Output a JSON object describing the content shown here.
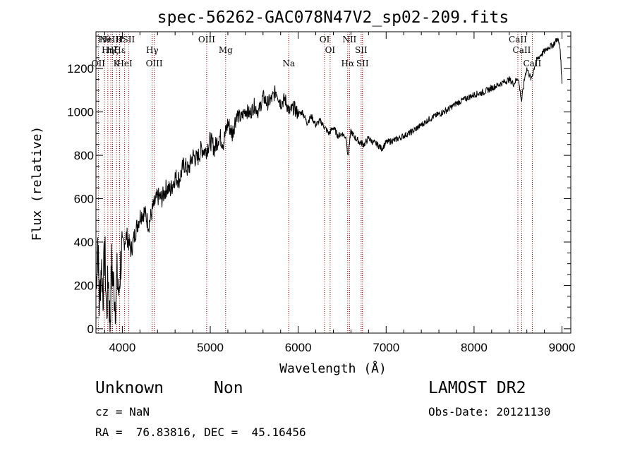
{
  "chart_data": {
    "type": "line",
    "title": "spec-56262-GAC078N47V2_sp02-209.fits",
    "xlabel": "Wavelength (Å)",
    "ylabel": "Flux (relative)",
    "xlim": [
      3700,
      9100
    ],
    "ylim": [
      -20,
      1370
    ],
    "x_ticks": [
      4000,
      5000,
      6000,
      7000,
      8000,
      9000
    ],
    "y_ticks": [
      0,
      200,
      400,
      600,
      800,
      1000,
      1200
    ],
    "x_tick_labels": [
      "4000",
      "5000",
      "6000",
      "7000",
      "8000",
      "9000"
    ],
    "y_tick_labels": [
      "0",
      "200",
      "400",
      "600",
      "800",
      "1000",
      "1200"
    ],
    "grid": false,
    "series": [
      {
        "x": [
          3700,
          3720,
          3740,
          3760,
          3780,
          3800,
          3820,
          3840,
          3860,
          3880,
          3900,
          3920,
          3940,
          3960,
          3980,
          4000,
          4050,
          4100,
          4150,
          4200,
          4250,
          4300,
          4350,
          4400,
          4450,
          4500,
          4550,
          4600,
          4650,
          4700,
          4750,
          4800,
          4850,
          4900,
          4950,
          5000,
          5050,
          5100,
          5150,
          5200,
          5250,
          5300,
          5350,
          5400,
          5450,
          5500,
          5550,
          5600,
          5650,
          5700,
          5750,
          5800,
          5850,
          5900,
          5950,
          6000,
          6050,
          6100,
          6150,
          6200,
          6250,
          6300,
          6350,
          6400,
          6450,
          6500,
          6550,
          6563,
          6600,
          6650,
          6700,
          6750,
          6800,
          6850,
          6900,
          6950,
          7000,
          7100,
          7200,
          7300,
          7400,
          7500,
          7600,
          7700,
          7800,
          7900,
          8000,
          8100,
          8200,
          8300,
          8400,
          8450,
          8500,
          8540,
          8580,
          8600,
          8650,
          8700,
          8750,
          8800,
          8850,
          8900,
          8950,
          8980,
          9000
        ],
        "y": [
          180,
          420,
          110,
          310,
          160,
          380,
          60,
          250,
          20,
          300,
          200,
          120,
          240,
          150,
          300,
          380,
          430,
          360,
          450,
          520,
          540,
          480,
          560,
          610,
          600,
          650,
          640,
          700,
          690,
          760,
          730,
          800,
          780,
          830,
          820,
          870,
          830,
          890,
          860,
          950,
          900,
          990,
          970,
          1010,
          990,
          1030,
          1000,
          1070,
          1040,
          1060,
          1100,
          1040,
          1060,
          1000,
          1020,
          990,
          1000,
          950,
          980,
          940,
          960,
          930,
          900,
          930,
          890,
          900,
          880,
          790,
          910,
          880,
          860,
          850,
          880,
          860,
          850,
          830,
          860,
          870,
          890,
          910,
          940,
          970,
          990,
          1010,
          1040,
          1060,
          1080,
          1090,
          1110,
          1130,
          1150,
          1130,
          1160,
          1050,
          1170,
          1200,
          1150,
          1230,
          1260,
          1280,
          1300,
          1310,
          1340,
          1290,
          1130
        ]
      }
    ],
    "line_labels": [
      {
        "w": 3797,
        "text": "Hθ"
      },
      {
        "w": 3835,
        "text": "Hη"
      },
      {
        "w": 3727,
        "text": "OII"
      },
      {
        "w": 3869,
        "text": "NeIII"
      },
      {
        "w": 3889,
        "text": "Hζ"
      },
      {
        "w": 3934,
        "text": "K"
      },
      {
        "w": 3968,
        "text": "H"
      },
      {
        "w": 3970,
        "text": "Hε"
      },
      {
        "w": 4026,
        "text": "HeI"
      },
      {
        "w": 4072,
        "text": "SII"
      },
      {
        "w": 4340,
        "text": "Hγ"
      },
      {
        "w": 4363,
        "text": "OIII"
      },
      {
        "w": 4959,
        "text": "OIII"
      },
      {
        "w": 5175,
        "text": "Mg"
      },
      {
        "w": 5893,
        "text": "Na"
      },
      {
        "w": 6300,
        "text": "OI"
      },
      {
        "w": 6363,
        "text": "OI"
      },
      {
        "w": 6563,
        "text": "Hα"
      },
      {
        "w": 6583,
        "text": "NII"
      },
      {
        "w": 6716,
        "text": "SII"
      },
      {
        "w": 6731,
        "text": "SII"
      },
      {
        "w": 8498,
        "text": "CaII"
      },
      {
        "w": 8542,
        "text": "CaII"
      },
      {
        "w": 8662,
        "text": "CaII"
      }
    ]
  },
  "info": {
    "class": "Unknown",
    "subclass": "Non",
    "cz": "cz = NaN",
    "coords": "RA =  76.83816, DEC =  45.16456",
    "survey": "LAMOST DR2",
    "obs_date": "Obs-Date: 20121130"
  },
  "colors": {
    "line": "#000000",
    "marker": "#8b0000"
  }
}
